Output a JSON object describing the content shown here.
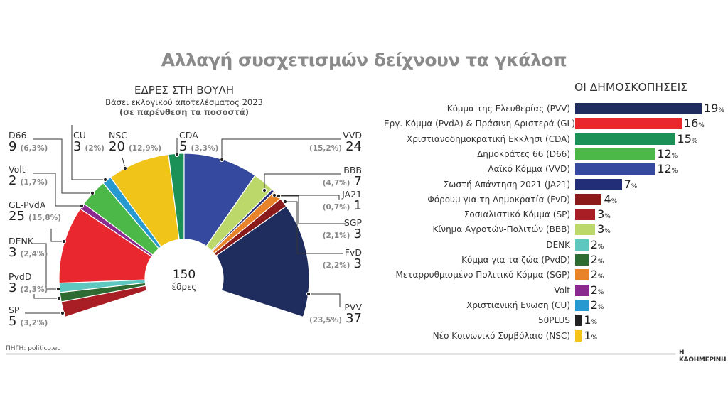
{
  "title": "Αλλαγή συσχετισμών δείχνουν τα γκάλοπ",
  "source": "ΠΗΓΗ: politico.eu",
  "brand": "Η ΚΑΘΗΜΕΡΙΝΗ",
  "chart_data": [
    {
      "type": "pie",
      "subtype": "hemicycle",
      "title": "ΕΔΡΕΣ ΣΤΗ ΒΟΥΛΗ",
      "subtitle": "Βάσει εκλογικού αποτελέσματος 2023",
      "note": "(σε παρένθεση τα ποσοστά)",
      "center_value": "150",
      "center_label": "έδρες",
      "slices": [
        {
          "party": "SP",
          "seats": 5,
          "pct": "(3,2%)",
          "color": "#a81e24"
        },
        {
          "party": "PvdD",
          "seats": 3,
          "pct": "(2,3%)",
          "color": "#2e6b32"
        },
        {
          "party": "DENK",
          "seats": 3,
          "pct": "(2,4%)",
          "color": "#5ec8c0"
        },
        {
          "party": "GL-PvdA",
          "seats": 25,
          "pct": "(15,8%)",
          "color": "#e8282e"
        },
        {
          "party": "Volt",
          "seats": 2,
          "pct": "(1,7%)",
          "color": "#8b2a8e"
        },
        {
          "party": "D66",
          "seats": 9,
          "pct": "(6,3%)",
          "color": "#4bb848"
        },
        {
          "party": "CU",
          "seats": 3,
          "pct": "(2%)",
          "color": "#2699d0"
        },
        {
          "party": "NSC",
          "seats": 20,
          "pct": "(12,9%)",
          "color": "#f0c419"
        },
        {
          "party": "CDA",
          "seats": 5,
          "pct": "(3,3%)",
          "color": "#1b9158"
        },
        {
          "party": "VVD",
          "seats": 24,
          "pct": "(15,2%)",
          "color": "#354a9e"
        },
        {
          "party": "BBB",
          "seats": 7,
          "pct": "(4,7%)",
          "color": "#bcd86a"
        },
        {
          "party": "JA21",
          "seats": 1,
          "pct": "(0,7%)",
          "color": "#232e78"
        },
        {
          "party": "SGP",
          "seats": 3,
          "pct": "(2,1%)",
          "color": "#e8832a"
        },
        {
          "party": "FvD",
          "seats": 3,
          "pct": "(2,2%)",
          "color": "#8b1a1a"
        },
        {
          "party": "PVV",
          "seats": 37,
          "pct": "(23,5%)",
          "color": "#1f2d5e"
        }
      ]
    },
    {
      "type": "bar",
      "orientation": "horizontal",
      "title": "ΟΙ ΔΗΜΟΣΚΟΠΗΣΕΙΣ",
      "unit": "%",
      "categories": [
        "Κόμμα της Ελευθερίας (PVV)",
        "Εργ. Κόμμα (PvdA) & Πράσινη Αριστερά (GL)",
        "Χριστιανοδημοκρατική Εκκλησι (CDA)",
        "Δημοκράτες 66 (D66)",
        "Λαϊκό Κόμμα (VVD)",
        "Σωστή Απάντηση 2021 (JA21)",
        "Φόρουμ για τη Δημοκρατία (FvD)",
        "Σοσιαλιστικό Κόμμα (SP)",
        "Κίνημα Αγροτών-Πολιτών (BBB)",
        "DENK",
        "Κόμμα για τα ζώα (PvdD)",
        "Μεταρρυθμισμένο Πολιτικό Κόμμα (SGP)",
        "Volt",
        "Χριστιανική Ενωση (CU)",
        "50PLUS",
        "Νέο Κοινωνικό Συμβόλαιο (NSC)"
      ],
      "values": [
        19,
        16,
        15,
        12,
        12,
        7,
        4,
        3,
        3,
        2,
        2,
        2,
        2,
        2,
        1,
        1
      ],
      "colors": [
        "#1f2d5e",
        "#e8282e",
        "#1b9158",
        "#4bb848",
        "#354a9e",
        "#232e78",
        "#8b1a1a",
        "#a81e24",
        "#bcd86a",
        "#5ec8c0",
        "#2e6b32",
        "#e8832a",
        "#8b2a8e",
        "#2699d0",
        "#222222",
        "#f0c419"
      ]
    }
  ]
}
